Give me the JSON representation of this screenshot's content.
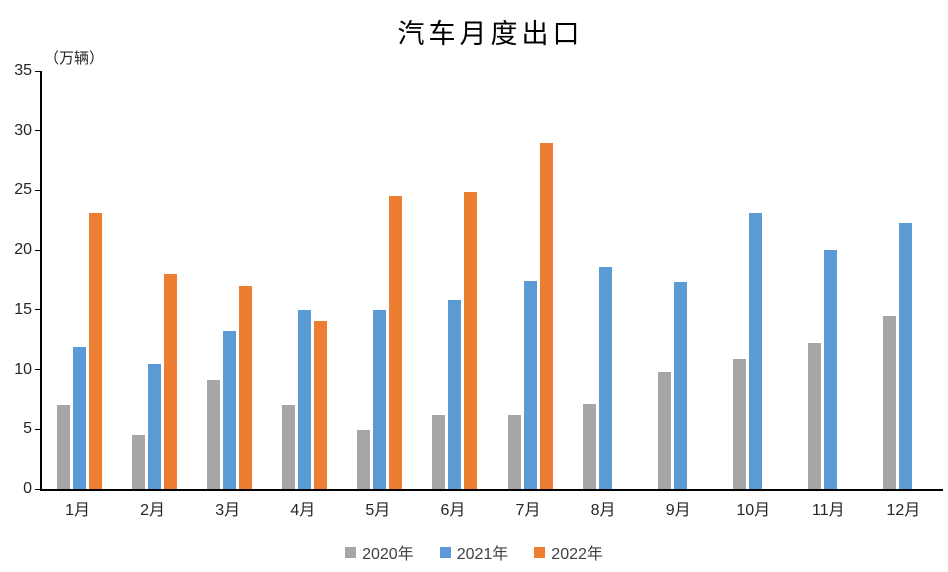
{
  "title": "汽车月度出口",
  "unit_label": "（万辆）",
  "chart_data": {
    "type": "bar",
    "title": "汽车月度出口",
    "ylabel": "（万辆）",
    "categories": [
      "1月",
      "2月",
      "3月",
      "4月",
      "5月",
      "6月",
      "7月",
      "8月",
      "9月",
      "10月",
      "11月",
      "12月"
    ],
    "series": [
      {
        "name": "2020年",
        "color": "#A6A6A6",
        "values": [
          7.0,
          4.5,
          9.1,
          7.0,
          4.9,
          6.2,
          6.2,
          7.1,
          9.8,
          10.9,
          12.2,
          14.5
        ]
      },
      {
        "name": "2021年",
        "color": "#5B9BD5",
        "values": [
          11.9,
          10.5,
          13.2,
          15.0,
          15.0,
          15.8,
          17.4,
          18.6,
          17.3,
          23.1,
          20.0,
          22.3
        ]
      },
      {
        "name": "2022年",
        "color": "#ED7D31",
        "values": [
          23.1,
          18.0,
          17.0,
          14.1,
          24.5,
          24.9,
          29.0,
          null,
          null,
          null,
          null,
          null
        ]
      }
    ],
    "ylim": [
      0,
      35
    ],
    "yticks": [
      0,
      5,
      10,
      15,
      20,
      25,
      30,
      35
    ],
    "grid": false,
    "legend_position": "bottom"
  }
}
